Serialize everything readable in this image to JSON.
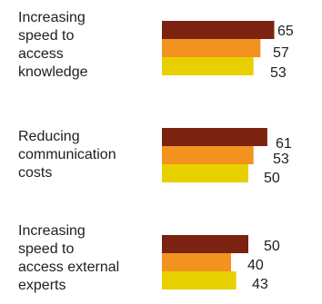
{
  "chart_data": {
    "type": "bar",
    "orientation": "horizontal",
    "categories": [
      "Increasing\nspeed to\naccess\nknowledge",
      "Reducing\ncommunication\ncosts",
      "Increasing\nspeed to\naccess external\nexperts"
    ],
    "series": [
      {
        "values": [
          65,
          61,
          50
        ],
        "color": "#7b2310"
      },
      {
        "values": [
          57,
          53,
          40
        ],
        "color": "#f4921f"
      },
      {
        "values": [
          53,
          50,
          43
        ],
        "color": "#e8d000"
      }
    ],
    "xlim": [
      0,
      65
    ],
    "grid": false,
    "legend": "none"
  }
}
